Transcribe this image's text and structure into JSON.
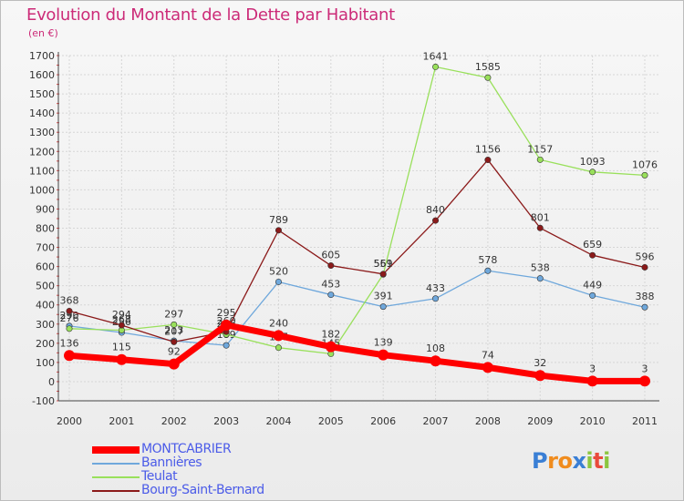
{
  "header": {
    "title": "Evolution du Montant de la Dette par Habitant",
    "unit": "(en €)"
  },
  "chart_data": {
    "type": "line",
    "title": "Evolution du Montant de la Dette par Habitant",
    "ylabel": "(en €)",
    "xlabel": "",
    "x": [
      "2000",
      "2001",
      "2002",
      "2003",
      "2004",
      "2005",
      "2006",
      "2007",
      "2008",
      "2009",
      "2010",
      "2011"
    ],
    "ylim": [
      -100,
      1700
    ],
    "yticks": [
      -100,
      0,
      100,
      200,
      300,
      400,
      500,
      600,
      700,
      800,
      900,
      1000,
      1100,
      1200,
      1300,
      1400,
      1500,
      1600,
      1700
    ],
    "grid": true,
    "legend_position": "bottom-left",
    "series": [
      {
        "name": "MONTCABRIER",
        "color": "#ff0000",
        "values": [
          136,
          115,
          92,
          295,
          240,
          182,
          139,
          108,
          74,
          32,
          3,
          3
        ]
      },
      {
        "name": "Bannières",
        "color": "#6fa8dc",
        "values": [
          290,
          256,
          213,
          189,
          520,
          453,
          391,
          433,
          578,
          538,
          449,
          388
        ]
      },
      {
        "name": "Teulat",
        "color": "#99e05b",
        "values": [
          276,
          268,
          297,
          246,
          177,
          145,
          559,
          1641,
          1585,
          1157,
          1093,
          1076
        ]
      },
      {
        "name": "Bourg-Saint-Bernard",
        "color": "#8b1a1a",
        "values": [
          368,
          294,
          207,
          260,
          789,
          605,
          561,
          840,
          1156,
          801,
          659,
          596
        ]
      }
    ]
  },
  "legend": {
    "items": [
      {
        "label": "MONTCABRIER",
        "color": "#ff0000"
      },
      {
        "label": "Bannières",
        "color": "#6fa8dc"
      },
      {
        "label": "Teulat",
        "color": "#99e05b"
      },
      {
        "label": "Bourg-Saint-Bernard",
        "color": "#8b1a1a"
      }
    ]
  },
  "logo": {
    "letters": [
      "P",
      "r",
      "o",
      "x",
      "i",
      "t",
      "i"
    ],
    "colors": [
      "#3a7fd5",
      "#f08c1e",
      "#f08c1e",
      "#3a7fd5",
      "#8cc63f",
      "#e94b3c",
      "#8cc63f"
    ]
  }
}
